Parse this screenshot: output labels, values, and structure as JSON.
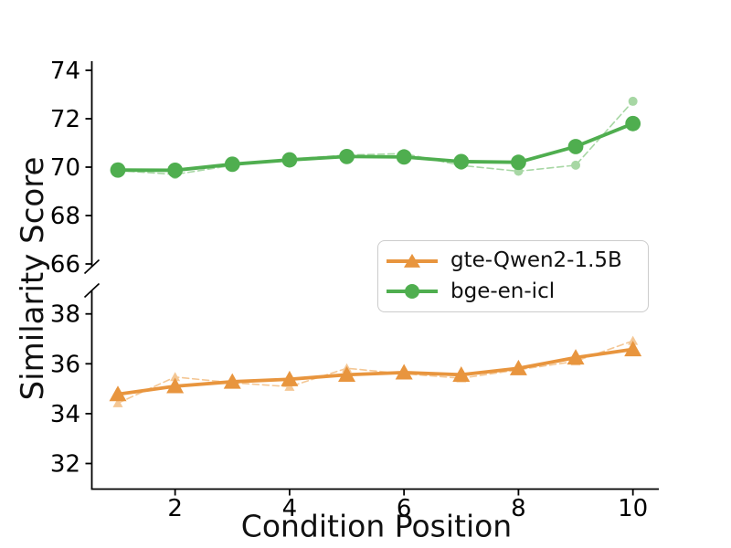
{
  "chart_data": {
    "type": "line",
    "broken_y_axis": true,
    "xlabel": "Condition Position",
    "ylabel": "Similarity Score",
    "x": [
      1,
      2,
      3,
      4,
      5,
      6,
      7,
      8,
      9,
      10
    ],
    "x_ticks": [
      2,
      4,
      6,
      8,
      10
    ],
    "panels": [
      {
        "id": "top",
        "yticks": [
          66,
          68,
          70,
          72,
          74
        ],
        "ylim": [
          65.6,
          74.4
        ]
      },
      {
        "id": "bottom",
        "yticks": [
          32,
          34,
          36,
          38
        ],
        "ylim": [
          31.0,
          38.9
        ]
      }
    ],
    "grid": false,
    "series": [
      {
        "id": "bge-en-icl-raw",
        "panel": "top",
        "style": "dashed",
        "marker": "circle",
        "color": "#a7d7a4",
        "values": [
          69.86,
          69.7,
          70.07,
          70.33,
          70.5,
          70.56,
          70.07,
          69.83,
          70.08,
          72.72
        ]
      },
      {
        "id": "bge-en-icl",
        "panel": "top",
        "style": "solid",
        "marker": "circle",
        "color": "#4fae4f",
        "values": [
          69.88,
          69.87,
          70.12,
          70.3,
          70.44,
          70.42,
          70.23,
          70.2,
          70.85,
          71.8
        ]
      },
      {
        "id": "gte-Qwen2-1.5B-raw",
        "panel": "bottom",
        "style": "dashed",
        "marker": "triangle",
        "color": "#f4c795",
        "values": [
          34.42,
          35.47,
          35.24,
          35.08,
          35.82,
          35.6,
          35.42,
          35.76,
          36.1,
          36.92
        ]
      },
      {
        "id": "gte-Qwen2-1.5B",
        "panel": "bottom",
        "style": "solid",
        "marker": "triangle",
        "color": "#e8953e",
        "values": [
          34.78,
          35.1,
          35.28,
          35.38,
          35.56,
          35.65,
          35.56,
          35.82,
          36.25,
          36.58
        ]
      }
    ],
    "legend": {
      "position": "center-right",
      "entries": [
        {
          "label": "gte-Qwen2-1.5B",
          "marker": "triangle",
          "color": "#e8953e"
        },
        {
          "label": "bge-en-icl",
          "marker": "circle",
          "color": "#4fae4f"
        }
      ]
    },
    "colors": {
      "orange": "#e8953e",
      "green": "#4fae4f",
      "axis": "#000000",
      "legend_border": "#cccccc"
    }
  }
}
